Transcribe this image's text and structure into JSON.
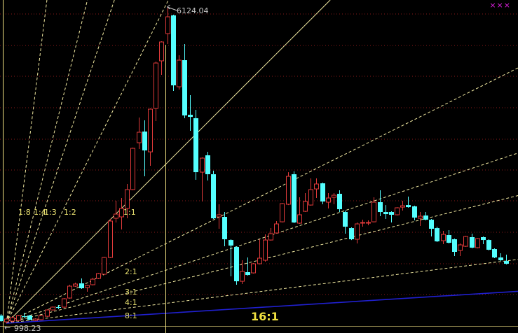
{
  "window": {
    "close_marks": "×××",
    "close_color": "#e020e0"
  },
  "colors": {
    "up": "#e03a3a",
    "down": "#54ffff",
    "fan": "#f0e8a0",
    "fan_16": "#2020d0",
    "grid": "#8a1a1a",
    "axis": "#f0e080"
  },
  "labels": {
    "high": "6124.04",
    "low": "998.23"
  },
  "chart_data": {
    "type": "candlestick",
    "title": "",
    "grid": true,
    "high_marker": 6124.04,
    "low_marker": 998.23,
    "gann_fan": {
      "origin_bar": 1,
      "origin_price": 998.23,
      "lines": [
        {
          "label": "1:8",
          "ratio": 8
        },
        {
          "label": "1:4",
          "ratio": 4
        },
        {
          "label": "1:3",
          "ratio": 3
        },
        {
          "label": "1:2",
          "ratio": 2
        },
        {
          "label": "1:1",
          "ratio": 1
        },
        {
          "label": "2:1",
          "ratio": 0.5
        },
        {
          "label": "3:1",
          "ratio": 0.3333
        },
        {
          "label": "4:1",
          "ratio": 0.25
        },
        {
          "label": "8:1",
          "ratio": 0.125
        },
        {
          "label": "16:1",
          "ratio": 0.0625
        }
      ]
    },
    "ohlc": [
      [
        1123,
        1145,
        1021,
        1032
      ],
      [
        1021,
        1077,
        998.23,
        1066
      ],
      [
        1032,
        1111,
        1009,
        1089
      ],
      [
        1043,
        1134,
        1032,
        1123
      ],
      [
        1111,
        1168,
        1077,
        1100
      ],
      [
        1123,
        1134,
        1043,
        1055
      ],
      [
        1043,
        1077,
        1032,
        1066
      ],
      [
        1055,
        1134,
        1043,
        1123
      ],
      [
        1111,
        1225,
        1100,
        1213
      ],
      [
        1213,
        1270,
        1202,
        1259
      ],
      [
        1259,
        1293,
        1225,
        1247
      ],
      [
        1259,
        1406,
        1247,
        1395
      ],
      [
        1406,
        1622,
        1395,
        1599
      ],
      [
        1599,
        1656,
        1588,
        1633
      ],
      [
        1644,
        1724,
        1554,
        1565
      ],
      [
        1576,
        1622,
        1508,
        1610
      ],
      [
        1622,
        1735,
        1610,
        1712
      ],
      [
        1724,
        1814,
        1712,
        1803
      ],
      [
        1792,
        2075,
        1780,
        2064
      ],
      [
        2064,
        2688,
        2053,
        2654
      ],
      [
        2699,
        2983,
        2631,
        2767
      ],
      [
        2722,
        3028,
        2518,
        2858
      ],
      [
        2858,
        3255,
        2699,
        3164
      ],
      [
        3164,
        3844,
        3153,
        3833
      ],
      [
        3924,
        4332,
        3822,
        4094
      ],
      [
        4105,
        4287,
        3379,
        3799
      ],
      [
        3776,
        4479,
        3550,
        4468
      ],
      [
        4479,
        5239,
        4275,
        5216
      ],
      [
        5251,
        5568,
        5024,
        5557
      ],
      [
        5693,
        6124.04,
        5523,
        5965
      ],
      [
        5988,
        5999,
        4763,
        4854
      ],
      [
        4831,
        5341,
        4786,
        5262
      ],
      [
        5262,
        5523,
        4321,
        4366
      ],
      [
        4377,
        4695,
        4117,
        4343
      ],
      [
        4321,
        4457,
        3323,
        3447
      ],
      [
        3447,
        3686,
        2971,
        3674
      ],
      [
        3720,
        3776,
        3311,
        3413
      ],
      [
        3413,
        3470,
        2688,
        2699
      ],
      [
        2722,
        2926,
        2529,
        2756
      ],
      [
        2722,
        2801,
        2245,
        2359
      ],
      [
        2347,
        2359,
        1758,
        2257
      ],
      [
        2234,
        2245,
        1622,
        1678
      ],
      [
        1678,
        2019,
        1633,
        1837
      ],
      [
        1826,
        2064,
        1769,
        1780
      ],
      [
        1814,
        1973,
        1803,
        1962
      ],
      [
        1962,
        2359,
        1951,
        2053
      ],
      [
        2019,
        2438,
        1996,
        2347
      ],
      [
        2347,
        2540,
        2336,
        2450
      ],
      [
        2461,
        2654,
        2450,
        2608
      ],
      [
        2642,
        2948,
        2631,
        2937
      ],
      [
        2926,
        3447,
        2914,
        3379
      ],
      [
        3413,
        3459,
        2620,
        2631
      ],
      [
        2620,
        3039,
        2608,
        2756
      ],
      [
        2812,
        3107,
        2801,
        2971
      ],
      [
        2914,
        3345,
        2903,
        3164
      ],
      [
        3175,
        3345,
        3028,
        3255
      ],
      [
        3266,
        3277,
        2926,
        2971
      ],
      [
        2960,
        3107,
        2858,
        3028
      ],
      [
        3039,
        3107,
        2926,
        3073
      ],
      [
        3096,
        3153,
        2801,
        2846
      ],
      [
        2801,
        2824,
        2450,
        2563
      ],
      [
        2540,
        2552,
        2347,
        2359
      ],
      [
        2359,
        2631,
        2291,
        2608
      ],
      [
        2620,
        2676,
        2563,
        2631
      ],
      [
        2620,
        2665,
        2586,
        2631
      ],
      [
        2642,
        3039,
        2631,
        2960
      ],
      [
        2960,
        3153,
        2733,
        2801
      ],
      [
        2801,
        2914,
        2688,
        2767
      ],
      [
        2801,
        2812,
        2631,
        2756
      ],
      [
        2756,
        2880,
        2744,
        2869
      ],
      [
        2880,
        2983,
        2824,
        2903
      ],
      [
        2914,
        3051,
        2869,
        2880
      ],
      [
        2892,
        2903,
        2665,
        2710
      ],
      [
        2699,
        2801,
        2574,
        2733
      ],
      [
        2744,
        2801,
        2665,
        2676
      ],
      [
        2676,
        2688,
        2404,
        2529
      ],
      [
        2540,
        2563,
        2313,
        2325
      ],
      [
        2336,
        2495,
        2279,
        2438
      ],
      [
        2427,
        2506,
        2291,
        2302
      ],
      [
        2359,
        2370,
        2087,
        2155
      ],
      [
        2177,
        2291,
        2087,
        2268
      ],
      [
        2245,
        2416,
        2234,
        2404
      ],
      [
        2393,
        2450,
        2211,
        2223
      ],
      [
        2223,
        2381,
        2211,
        2370
      ],
      [
        2393,
        2404,
        2279,
        2347
      ],
      [
        2347,
        2359,
        2177,
        2189
      ],
      [
        2200,
        2211,
        2053,
        2064
      ],
      [
        2064,
        2132,
        2007,
        2019
      ],
      [
        2007,
        2109,
        1951,
        1962
      ]
    ]
  }
}
